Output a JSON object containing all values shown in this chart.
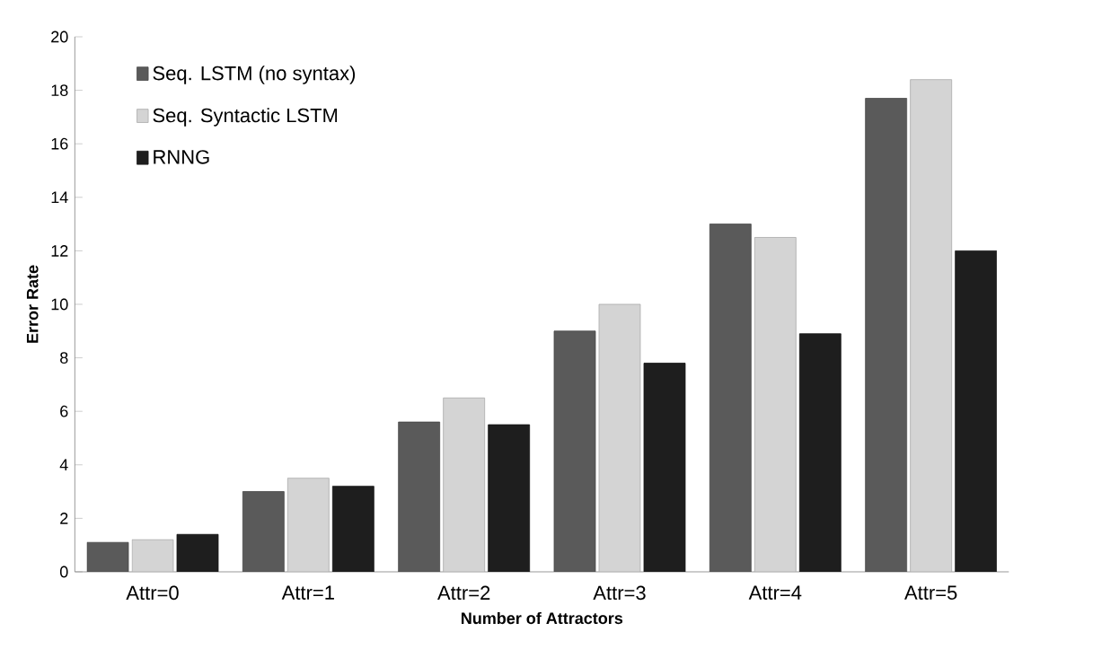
{
  "chart_data": {
    "type": "bar",
    "xlabel": "Number of Attractors",
    "ylabel": "Error Rate",
    "categories": [
      "Attr=0",
      "Attr=1",
      "Attr=2",
      "Attr=3",
      "Attr=4",
      "Attr=5"
    ],
    "series": [
      {
        "name": "Seq. LSTM (no syntax)",
        "color": "#5a5a5a",
        "values": [
          1.1,
          3.0,
          5.6,
          9.0,
          13.0,
          17.7
        ]
      },
      {
        "name": "Seq. Syntactic LSTM",
        "color": "#d4d4d4",
        "values": [
          1.2,
          3.5,
          6.5,
          10.0,
          12.5,
          18.4
        ]
      },
      {
        "name": "RNNG",
        "color": "#1e1e1e",
        "values": [
          1.4,
          3.2,
          5.5,
          7.8,
          8.9,
          12.0
        ]
      }
    ],
    "ylim": [
      0,
      20
    ],
    "yticks": [
      0,
      2,
      4,
      6,
      8,
      10,
      12,
      14,
      16,
      18,
      20
    ],
    "grid": false,
    "legend": "top left"
  }
}
